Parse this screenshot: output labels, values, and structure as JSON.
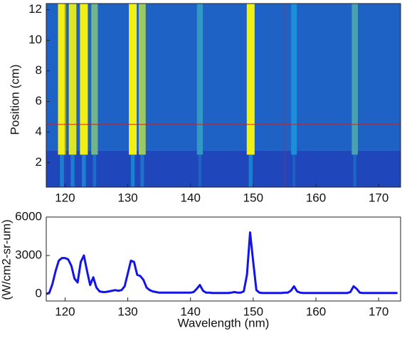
{
  "chart_data": [
    {
      "type": "spectrogram",
      "ylabel": "Position (cm)",
      "xlim": [
        117,
        173.5
      ],
      "ylim": [
        0.4,
        12.4
      ],
      "xticks": [
        120,
        130,
        140,
        150,
        160,
        170
      ],
      "yticks": [
        2,
        4,
        6,
        8,
        10,
        12
      ],
      "x": [
        119.5,
        121.2,
        123,
        124.7,
        130.8,
        132.3,
        141.5,
        149.6,
        156.5,
        166.2
      ],
      "values": [
        1,
        0.95,
        1,
        0.7,
        1,
        0.8,
        0.55,
        1,
        0.5,
        0.6
      ],
      "colormap": [
        "#1f3fb8",
        "#1d8fd8",
        "#f2ef14"
      ],
      "cursor": {
        "x": [
          120,
          155
        ],
        "y": 4.5,
        "color": "#d02020"
      }
    },
    {
      "type": "line",
      "xlabel": "Wavelength (nm)",
      "ylabel": "(W/cm2-sr-um)",
      "color": "#1414e8",
      "xlim": [
        117,
        173.5
      ],
      "ylim": [
        -550,
        6000
      ],
      "xticks": [
        120,
        130,
        140,
        150,
        160,
        170
      ],
      "yticks": [
        0,
        3000,
        6000
      ],
      "x": [
        117,
        117.5,
        118,
        118.5,
        119,
        119.5,
        120,
        120.5,
        121,
        121.5,
        122,
        122.5,
        123,
        123.5,
        124,
        124.5,
        125,
        125.5,
        126,
        126.5,
        127,
        127.5,
        128,
        128.5,
        129,
        129.5,
        130,
        130.5,
        131,
        131.5,
        132,
        132.5,
        133,
        133.5,
        134,
        134.5,
        135,
        135.5,
        136,
        136.5,
        137,
        137.5,
        138,
        138.5,
        139,
        139.5,
        140,
        140.5,
        141,
        141.5,
        142,
        142.5,
        143,
        143.5,
        144,
        144.5,
        145,
        145.5,
        146,
        146.5,
        147,
        147.5,
        148,
        148.5,
        149,
        149.5,
        150,
        150.5,
        151,
        151.5,
        152,
        152.5,
        153,
        153.5,
        154,
        154.5,
        155,
        155.5,
        156,
        156.5,
        157,
        157.5,
        158,
        158.5,
        159,
        159.5,
        160,
        160.5,
        161,
        161.5,
        162,
        162.5,
        163,
        163.5,
        164,
        164.5,
        165,
        165.5,
        166,
        166.5,
        167,
        167.5,
        168,
        168.5,
        169,
        169.5,
        170,
        170.5,
        171,
        171.5,
        172,
        172.5,
        173
      ],
      "values": [
        0,
        100,
        800,
        1800,
        2600,
        2800,
        2800,
        2700,
        2200,
        1200,
        900,
        2500,
        3000,
        1800,
        700,
        1300,
        500,
        200,
        150,
        150,
        200,
        250,
        300,
        250,
        300,
        600,
        1600,
        2600,
        2500,
        1500,
        1400,
        1100,
        500,
        300,
        200,
        150,
        100,
        100,
        100,
        100,
        100,
        100,
        100,
        100,
        100,
        100,
        100,
        150,
        400,
        700,
        250,
        100,
        100,
        80,
        80,
        80,
        80,
        80,
        80,
        100,
        150,
        100,
        100,
        200,
        1500,
        4800,
        2500,
        300,
        100,
        80,
        80,
        80,
        80,
        80,
        80,
        80,
        100,
        100,
        250,
        600,
        200,
        100,
        80,
        80,
        80,
        80,
        80,
        80,
        80,
        80,
        80,
        80,
        80,
        80,
        80,
        80,
        80,
        150,
        600,
        400,
        100,
        80,
        80,
        80,
        80,
        80,
        80,
        80,
        80,
        80,
        80,
        80,
        80
      ]
    }
  ]
}
